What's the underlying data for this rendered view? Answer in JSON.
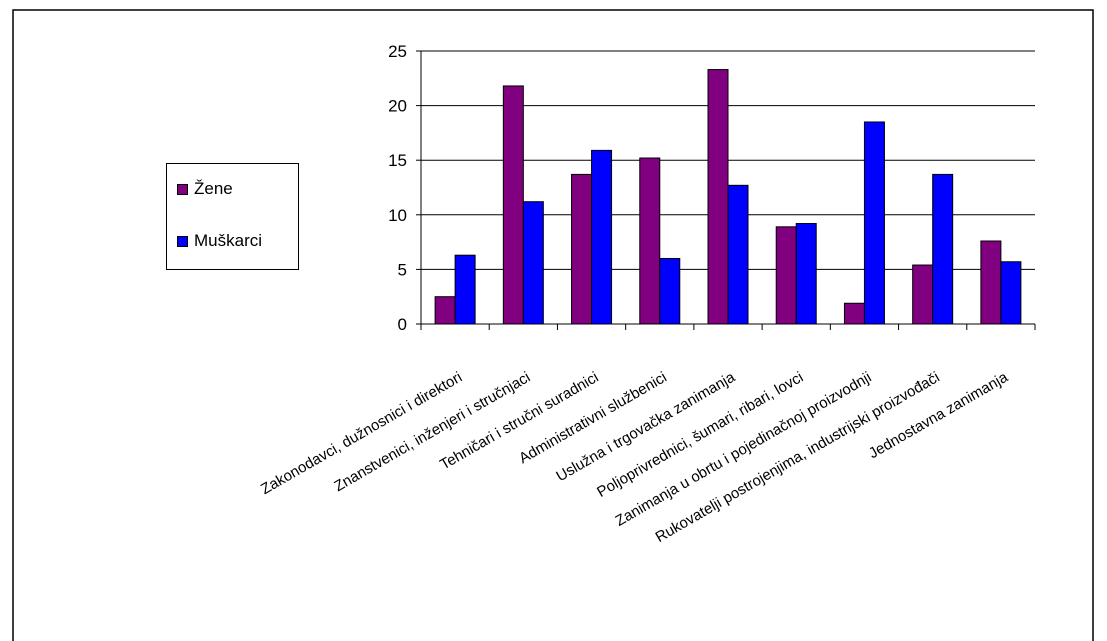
{
  "chart_data": {
    "type": "bar",
    "categories": [
      "Zakonodavci, dužnosnici i direktori",
      "Znanstvenici, inženjeri i stručnjaci",
      "Tehničari i stručni suradnici",
      "Administrativni službenici",
      "Uslužna i trgovačka zanimanja",
      "Poljoprivrednici, šumari, ribari, lovci",
      "Zanimanja u obrtu i pojedinačnoj proizvodnji",
      "Rukovatelji postrojenjima, industrijski proizvođači",
      "Jednostavna zanimanja"
    ],
    "series": [
      {
        "name": "Žene",
        "color": "#800080",
        "values": [
          2.5,
          21.8,
          13.7,
          15.2,
          23.3,
          8.9,
          1.9,
          5.4,
          7.6
        ]
      },
      {
        "name": "Muškarci",
        "color": "#0000ff",
        "values": [
          6.3,
          11.2,
          15.9,
          6.0,
          12.7,
          9.2,
          18.5,
          13.7,
          5.7
        ]
      }
    ],
    "ylim": [
      0,
      25
    ],
    "yticks": [
      "0",
      "5",
      "10",
      "15",
      "20",
      "25"
    ],
    "grid": true,
    "legend_position": "left"
  }
}
